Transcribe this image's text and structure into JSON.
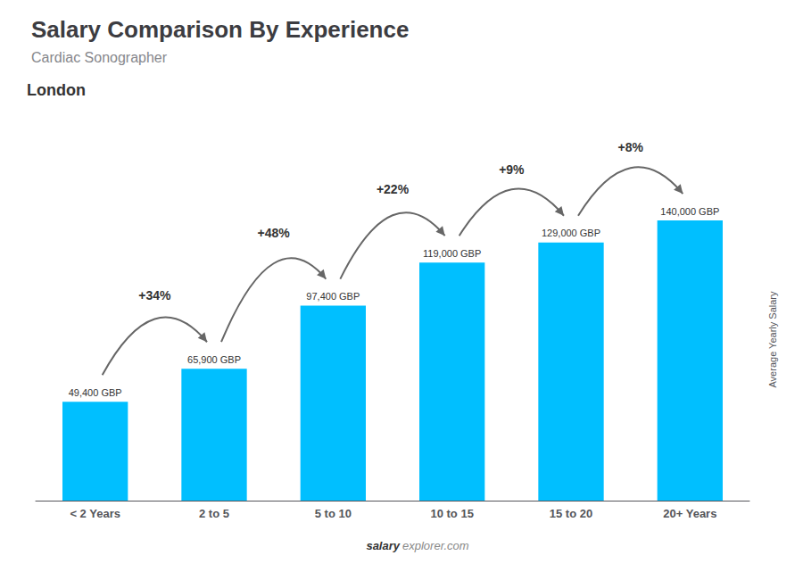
{
  "chart_data": {
    "type": "bar",
    "title": "Salary Comparison By Experience",
    "subtitle": "Cardiac Sonographer",
    "ylabel": "Average Yearly Salary",
    "categories": [
      "< 2 Years",
      "2 to 5",
      "5 to 10",
      "10 to 15",
      "15 to 20",
      "20+ Years"
    ],
    "values": [
      49400,
      65900,
      97400,
      119000,
      129000,
      140000
    ],
    "value_labels": [
      "49,400 GBP",
      "65,900 GBP",
      "97,400 GBP",
      "119,000 GBP",
      "129,000 GBP",
      "140,000 GBP"
    ],
    "color": "#00BFFF",
    "data_labels": true,
    "ylim": [
      0,
      161000
    ],
    "tick_labels": "x",
    "grid": false,
    "annotations": [
      {
        "text": "London"
      },
      {
        "text": "+34%",
        "from": "< 2 Years",
        "to": "2 to 5"
      },
      {
        "text": "+48%",
        "from": "2 to 5",
        "to": "5 to 10"
      },
      {
        "text": "+22%",
        "from": "5 to 10",
        "to": "10 to 15"
      },
      {
        "text": "+9%",
        "from": "10 to 15",
        "to": "15 to 20"
      },
      {
        "text": "+8%",
        "from": "15 to 20",
        "to": "20+ Years"
      },
      {
        "text": "salary"
      },
      {
        "text": "explorer.com"
      }
    ]
  }
}
